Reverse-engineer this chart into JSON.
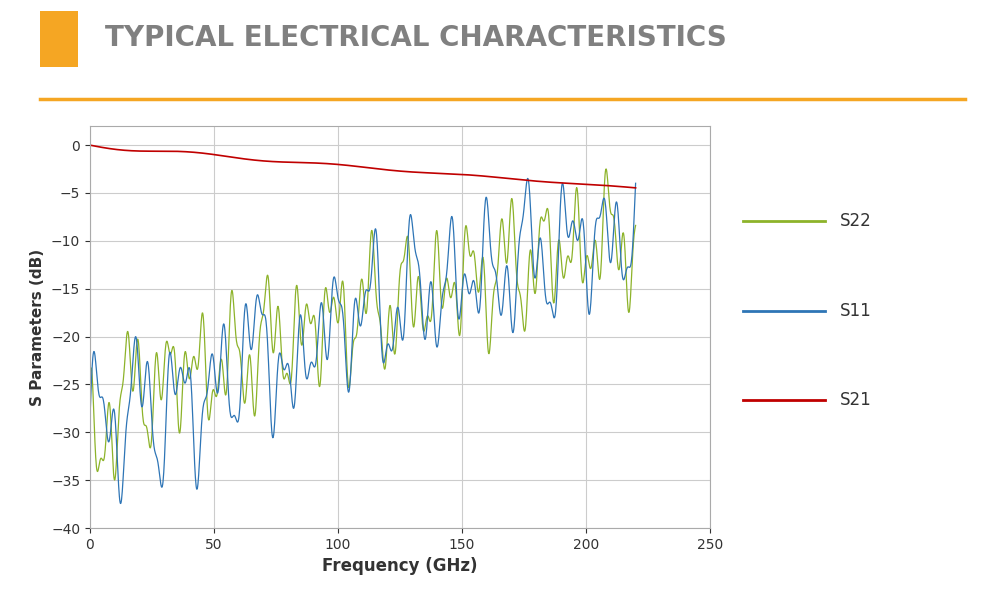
{
  "title": "TYPICAL ELECTRICAL CHARACTERISTICS",
  "title_color": "#808080",
  "title_fontsize": 20,
  "accent_color": "#F5A623",
  "xlabel": "Frequency (GHz)",
  "ylabel": "S Parameters (dB)",
  "xlim": [
    0,
    250
  ],
  "ylim": [
    -40,
    2
  ],
  "yticks": [
    0,
    -5,
    -10,
    -15,
    -20,
    -25,
    -30,
    -35,
    -40
  ],
  "xticks": [
    0,
    50,
    100,
    150,
    200,
    250
  ],
  "grid_color": "#cccccc",
  "bg_color": "#ffffff",
  "plot_bg_color": "#ffffff",
  "s22_color": "#8DB32A",
  "s11_color": "#2E75B6",
  "s21_color": "#C00000",
  "legend_fontsize": 12
}
